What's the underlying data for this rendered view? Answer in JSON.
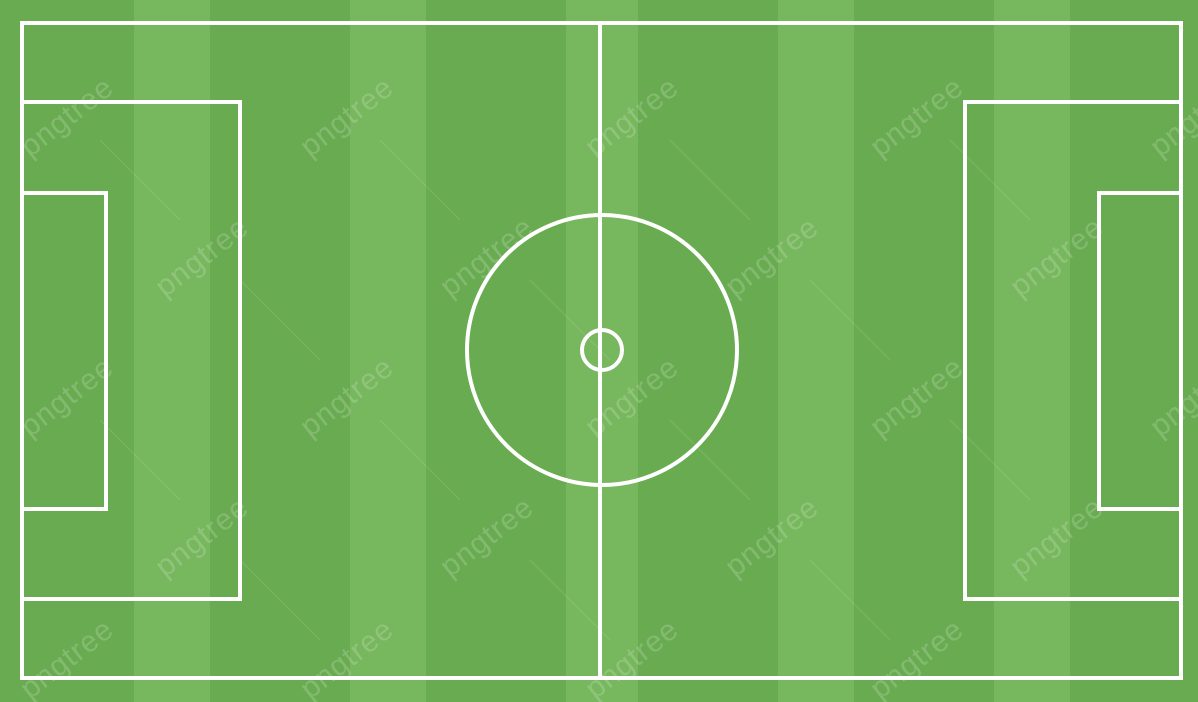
{
  "watermark": {
    "text": "pngtree"
  },
  "colors": {
    "grass_dark": "#69ab51",
    "grass_light": "#77b75d",
    "line": "#ffffff"
  }
}
